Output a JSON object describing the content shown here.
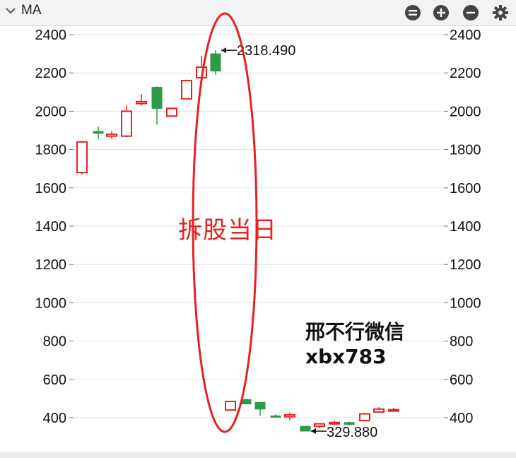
{
  "toolbar": {
    "indicator": "MA",
    "icons": [
      "chevron-down-icon",
      "menu-circle-icon",
      "zoom-in-icon",
      "zoom-out-icon",
      "gear-icon"
    ]
  },
  "annotations": {
    "split_day": "拆股当日",
    "watermark_line1": "邢不行微信",
    "watermark_line2": "xbx783"
  },
  "colors": {
    "up": "#e8211f",
    "down": "#2e9a48",
    "ellipse": "#e8211f"
  },
  "chart_data": {
    "type": "candlestick",
    "ylim": [
      290,
      2460
    ],
    "y_ticks": [
      400,
      600,
      800,
      1000,
      1200,
      1400,
      1600,
      1800,
      2000,
      2200,
      2400
    ],
    "axes": "left and right",
    "grid": true,
    "last_high_label": "2318.490",
    "last_low_label": "329.880",
    "candles": [
      {
        "open": 1680,
        "close": 1840,
        "high": 1845,
        "low": 1670
      },
      {
        "open": 1895,
        "close": 1885,
        "high": 1920,
        "low": 1855
      },
      {
        "open": 1870,
        "close": 1880,
        "high": 1895,
        "low": 1855
      },
      {
        "open": 1870,
        "close": 2000,
        "high": 2030,
        "low": 1865
      },
      {
        "open": 2040,
        "close": 2050,
        "high": 2090,
        "low": 2030
      },
      {
        "open": 2125,
        "close": 2015,
        "high": 2130,
        "low": 1930
      },
      {
        "open": 1975,
        "close": 2015,
        "high": 2015,
        "low": 1975
      },
      {
        "open": 2065,
        "close": 2160,
        "high": 2165,
        "low": 2060
      },
      {
        "open": 2175,
        "close": 2230,
        "high": 2290,
        "low": 2170
      },
      {
        "open": 2300,
        "close": 2210,
        "high": 2318.49,
        "low": 2190
      },
      {
        "open": 440,
        "close": 485,
        "high": 485,
        "low": 440
      },
      {
        "open": 495,
        "close": 472,
        "high": 500,
        "low": 470
      },
      {
        "open": 480,
        "close": 445,
        "high": 482,
        "low": 410
      },
      {
        "open": 410,
        "close": 407,
        "high": 418,
        "low": 400
      },
      {
        "open": 405,
        "close": 415,
        "high": 425,
        "low": 388
      },
      {
        "open": 355,
        "close": 330,
        "high": 358,
        "low": 329.88
      },
      {
        "open": 355,
        "close": 368,
        "high": 370,
        "low": 345
      },
      {
        "open": 368,
        "close": 375,
        "high": 385,
        "low": 360
      },
      {
        "open": 375,
        "close": 365,
        "high": 380,
        "low": 360
      },
      {
        "open": 385,
        "close": 420,
        "high": 422,
        "low": 382
      },
      {
        "open": 430,
        "close": 445,
        "high": 455,
        "low": 428
      },
      {
        "open": 438,
        "close": 442,
        "high": 452,
        "low": 432
      }
    ]
  }
}
